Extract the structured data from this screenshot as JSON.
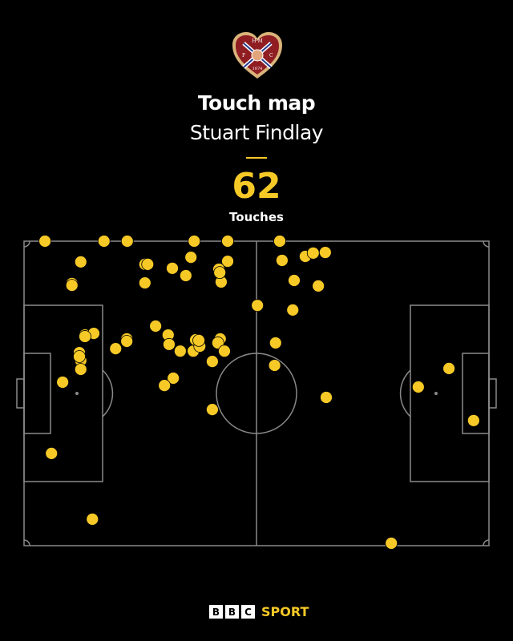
{
  "header": {
    "club_logo_text": "H M F C 1874",
    "title": "Touch map",
    "player": "Stuart Findlay",
    "touch_count": "62",
    "touch_label": "Touches"
  },
  "colors": {
    "background": "#000000",
    "dot": "#f6c927",
    "lines": "#8a8a8a"
  },
  "chart_data": {
    "type": "scatter",
    "title": "Touch map",
    "xlim": [
      0,
      100
    ],
    "ylim": [
      0,
      100
    ],
    "x_axis": "pitch length (%), attacking left to right",
    "points": [
      [
        4.5,
        0
      ],
      [
        17.2,
        0
      ],
      [
        22.2,
        0
      ],
      [
        36.6,
        0
      ],
      [
        43.8,
        0
      ],
      [
        55.0,
        0
      ],
      [
        12.2,
        6.8
      ],
      [
        10.3,
        13.9
      ],
      [
        26.0,
        7.6
      ],
      [
        26.6,
        7.6
      ],
      [
        26.0,
        13.7
      ],
      [
        31.9,
        8.9
      ],
      [
        35.9,
        5.3
      ],
      [
        34.8,
        11.3
      ],
      [
        43.8,
        6.6
      ],
      [
        41.9,
        9.2
      ],
      [
        42.4,
        13.4
      ],
      [
        55.5,
        6.3
      ],
      [
        60.5,
        5.0
      ],
      [
        62.2,
        3.9
      ],
      [
        64.8,
        3.7
      ],
      [
        58.1,
        12.9
      ],
      [
        63.3,
        14.7
      ],
      [
        50.2,
        21.1
      ],
      [
        57.8,
        22.6
      ],
      [
        13.1,
        30.8
      ],
      [
        15.0,
        30.3
      ],
      [
        11.9,
        36.6
      ],
      [
        12.2,
        39.2
      ],
      [
        12.2,
        42.1
      ],
      [
        8.3,
        46.3
      ],
      [
        19.7,
        35.3
      ],
      [
        22.1,
        32.1
      ],
      [
        28.3,
        27.9
      ],
      [
        31.0,
        30.8
      ],
      [
        31.2,
        33.9
      ],
      [
        33.6,
        36.1
      ],
      [
        36.4,
        36.1
      ],
      [
        36.9,
        32.4
      ],
      [
        37.8,
        34.5
      ],
      [
        42.2,
        32.1
      ],
      [
        41.7,
        33.4
      ],
      [
        43.1,
        36.1
      ],
      [
        40.5,
        39.5
      ],
      [
        32.1,
        45.0
      ],
      [
        30.2,
        47.4
      ],
      [
        40.5,
        55.3
      ],
      [
        54.1,
        33.4
      ],
      [
        53.9,
        40.8
      ],
      [
        65.0,
        51.3
      ],
      [
        5.9,
        69.7
      ],
      [
        14.7,
        91.3
      ],
      [
        79.0,
        99.2
      ],
      [
        84.8,
        47.9
      ],
      [
        91.4,
        41.8
      ],
      [
        96.7,
        58.9
      ],
      [
        10.3,
        14.5
      ],
      [
        42.1,
        10.3
      ],
      [
        37.6,
        32.6
      ],
      [
        11.9,
        37.9
      ],
      [
        22.1,
        32.9
      ],
      [
        13.1,
        31.3
      ]
    ]
  },
  "footer": {
    "bbc": [
      "B",
      "B",
      "C"
    ],
    "sport": "SPORT"
  }
}
